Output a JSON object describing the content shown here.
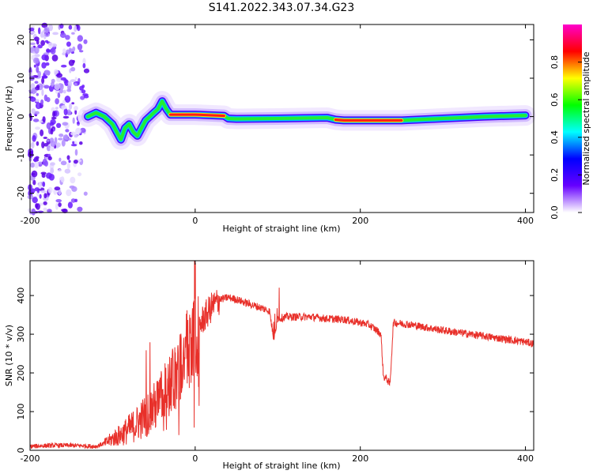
{
  "title": "S141.2022.343.07.34.G23",
  "chart_data": [
    {
      "type": "heatmap",
      "xlabel": "Height of straight line (km)",
      "ylabel": "Frequency (Hz)",
      "xlim": [
        -200,
        410
      ],
      "ylim": [
        -25,
        24
      ],
      "x_ticks": [
        "-200",
        "0",
        "200",
        "400"
      ],
      "y_ticks": [
        "20",
        "10",
        "0",
        "-10",
        "-20"
      ],
      "colorbar": {
        "label": "Normalized spectral amplitude",
        "range": [
          0,
          1
        ],
        "ticks": [
          "0.0",
          "0.2",
          "0.4",
          "0.6",
          "0.8"
        ],
        "colors": [
          "#ffffff",
          "#6600ff",
          "#0000ff",
          "#00ffff",
          "#00ff00",
          "#ffff00",
          "#ff0000",
          "#ff00cc"
        ]
      },
      "ridge": {
        "x": [
          -130,
          -120,
          -110,
          -100,
          -95,
          -90,
          -85,
          -80,
          -75,
          -70,
          -65,
          -60,
          -55,
          -50,
          -45,
          -40,
          -35,
          -30,
          -20,
          0,
          35,
          40,
          50,
          100,
          160,
          170,
          180,
          200,
          250,
          300,
          350,
          400
        ],
        "y": [
          0,
          1,
          0,
          -2,
          -4,
          -6,
          -3,
          -2,
          -4,
          -5,
          -3,
          -1,
          0,
          1,
          2,
          4,
          2,
          0.5,
          0.5,
          0.5,
          0.2,
          -0.5,
          -0.6,
          -0.5,
          -0.3,
          -0.8,
          -1,
          -1,
          -1,
          -0.5,
          0,
          0.3
        ]
      },
      "scatter_region_x": [
        -200,
        -130
      ]
    },
    {
      "type": "line",
      "xlabel": "Height of straight line (km)",
      "ylabel": "SNR (10 * v/v)",
      "xlim": [
        -200,
        410
      ],
      "ylim": [
        0,
        490
      ],
      "x_ticks": [
        "-200",
        "0",
        "200",
        "400"
      ],
      "y_ticks": [
        "0",
        "100",
        "200",
        "300",
        "400"
      ],
      "color": "#e8302a",
      "x": [
        -200,
        -180,
        -160,
        -140,
        -120,
        -110,
        -100,
        -90,
        -80,
        -70,
        -60,
        -50,
        -40,
        -30,
        -20,
        -10,
        0,
        10,
        20,
        30,
        40,
        50,
        60,
        70,
        80,
        90,
        95,
        100,
        110,
        120,
        140,
        160,
        180,
        200,
        210,
        220,
        225,
        228,
        232,
        236,
        240,
        260,
        300,
        350,
        400,
        410
      ],
      "y": [
        10,
        12,
        13,
        12,
        10,
        18,
        30,
        40,
        55,
        70,
        90,
        110,
        140,
        170,
        210,
        260,
        300,
        340,
        370,
        390,
        395,
        390,
        382,
        375,
        368,
        360,
        290,
        340,
        345,
        345,
        345,
        340,
        338,
        330,
        325,
        310,
        300,
        190,
        185,
        170,
        330,
        325,
        310,
        295,
        280,
        275
      ]
    }
  ]
}
